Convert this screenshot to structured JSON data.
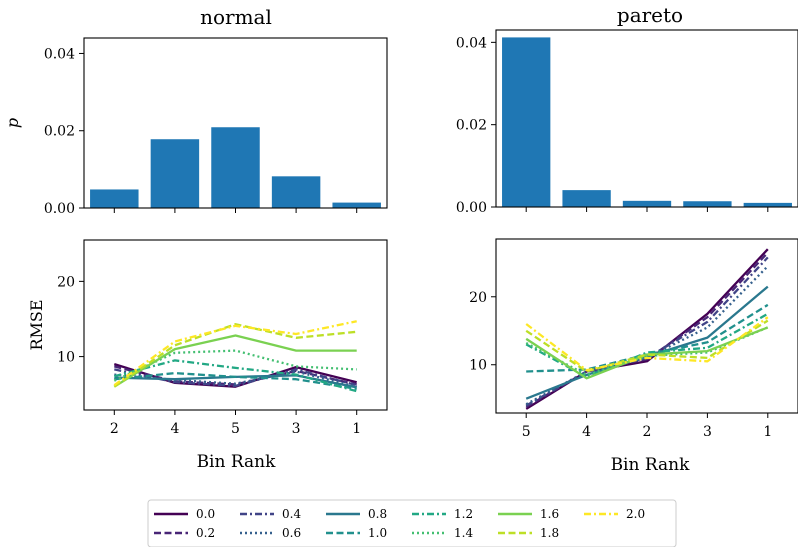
{
  "chart_data": [
    {
      "type": "bar",
      "title": "normal",
      "ylabel": "p",
      "xlabel": "",
      "categories": [
        "2",
        "4",
        "5",
        "3",
        "1"
      ],
      "values": [
        0.0048,
        0.0178,
        0.0209,
        0.0082,
        0.0014
      ],
      "ylim": [
        0,
        0.044
      ],
      "yticks": [
        0.0,
        0.02,
        0.04
      ],
      "ytick_labels": [
        "0.00",
        "0.02",
        "0.04"
      ],
      "bar_color": "#1f77b4"
    },
    {
      "type": "bar",
      "title": "pareto",
      "ylabel": "",
      "xlabel": "",
      "categories": [
        "5",
        "4",
        "2",
        "3",
        "1"
      ],
      "values": [
        0.0412,
        0.0041,
        0.0015,
        0.0014,
        0.001
      ],
      "ylim": [
        0,
        0.043
      ],
      "yticks": [
        0.0,
        0.02,
        0.04
      ],
      "ytick_labels": [
        "0.00",
        "0.02",
        "0.04"
      ],
      "bar_color": "#1f77b4"
    },
    {
      "type": "line",
      "title": "",
      "ylabel": "RMSE",
      "xlabel": "Bin Rank",
      "categories": [
        "2",
        "4",
        "5",
        "3",
        "1"
      ],
      "ylim": [
        2.9,
        25.5
      ],
      "yticks": [
        10,
        20
      ],
      "series": [
        {
          "name": "0.0",
          "values": [
            9.0,
            6.5,
            6.0,
            8.6,
            6.6
          ]
        },
        {
          "name": "0.2",
          "values": [
            8.7,
            6.7,
            6.3,
            8.1,
            6.3
          ]
        },
        {
          "name": "0.4",
          "values": [
            8.3,
            6.6,
            6.1,
            8.3,
            6.2
          ]
        },
        {
          "name": "0.6",
          "values": [
            7.6,
            6.9,
            6.4,
            8.0,
            6.0
          ]
        },
        {
          "name": "0.8",
          "values": [
            7.2,
            7.0,
            7.3,
            7.5,
            5.9
          ]
        },
        {
          "name": "1.0",
          "values": [
            7.0,
            7.8,
            7.3,
            7.0,
            5.7
          ]
        },
        {
          "name": "1.2",
          "values": [
            7.4,
            9.5,
            8.5,
            7.6,
            5.4
          ]
        },
        {
          "name": "1.4",
          "values": [
            6.8,
            10.5,
            10.8,
            8.7,
            8.3
          ]
        },
        {
          "name": "1.6",
          "values": [
            6.0,
            11.0,
            12.8,
            10.8,
            10.8
          ]
        },
        {
          "name": "1.8",
          "values": [
            6.0,
            11.5,
            14.3,
            12.5,
            13.3
          ]
        },
        {
          "name": "2.0",
          "values": [
            6.2,
            12.0,
            14.1,
            13.0,
            14.7
          ]
        }
      ]
    },
    {
      "type": "line",
      "title": "",
      "ylabel": "",
      "xlabel": "Bin Rank",
      "categories": [
        "5",
        "4",
        "2",
        "3",
        "1"
      ],
      "ylim": [
        2.9,
        28.5
      ],
      "yticks": [
        10,
        20
      ],
      "series": [
        {
          "name": "0.0",
          "values": [
            3.5,
            9.0,
            10.5,
            17.5,
            27.0
          ]
        },
        {
          "name": "0.2",
          "values": [
            3.8,
            9.0,
            10.8,
            17.0,
            26.5
          ]
        },
        {
          "name": "0.4",
          "values": [
            4.0,
            9.0,
            11.0,
            16.3,
            25.8
          ]
        },
        {
          "name": "0.6",
          "values": [
            4.2,
            9.0,
            11.0,
            15.5,
            24.5
          ]
        },
        {
          "name": "0.8",
          "values": [
            5.0,
            8.5,
            11.2,
            14.0,
            21.5
          ]
        },
        {
          "name": "1.0",
          "values": [
            9.0,
            9.3,
            11.5,
            13.3,
            18.8
          ]
        },
        {
          "name": "1.2",
          "values": [
            13.0,
            8.2,
            11.8,
            12.5,
            17.5
          ]
        },
        {
          "name": "1.4",
          "values": [
            13.2,
            8.5,
            11.3,
            11.8,
            15.5
          ]
        },
        {
          "name": "1.6",
          "values": [
            13.8,
            8.0,
            11.5,
            12.0,
            15.5
          ]
        },
        {
          "name": "1.8",
          "values": [
            15.0,
            9.0,
            11.5,
            11.0,
            16.5
          ]
        },
        {
          "name": "2.0",
          "values": [
            16.0,
            9.2,
            11.0,
            10.5,
            17.0
          ]
        }
      ]
    }
  ],
  "legend": {
    "placement": "bottom-center",
    "entries": [
      {
        "label": "0.0",
        "color": "#440154",
        "dash": "solid"
      },
      {
        "label": "0.2",
        "color": "#482576",
        "dash": "dashed"
      },
      {
        "label": "0.4",
        "color": "#414487",
        "dash": "dashdot"
      },
      {
        "label": "0.6",
        "color": "#35608d",
        "dash": "dotted"
      },
      {
        "label": "0.8",
        "color": "#2a788e",
        "dash": "solid"
      },
      {
        "label": "1.0",
        "color": "#21908d",
        "dash": "dashed"
      },
      {
        "label": "1.2",
        "color": "#22a884",
        "dash": "dashdot"
      },
      {
        "label": "1.4",
        "color": "#43bf71",
        "dash": "dotted"
      },
      {
        "label": "1.6",
        "color": "#7ad151",
        "dash": "solid"
      },
      {
        "label": "1.8",
        "color": "#bddf26",
        "dash": "dashed"
      },
      {
        "label": "2.0",
        "color": "#fde725",
        "dash": "dashdot"
      }
    ]
  }
}
